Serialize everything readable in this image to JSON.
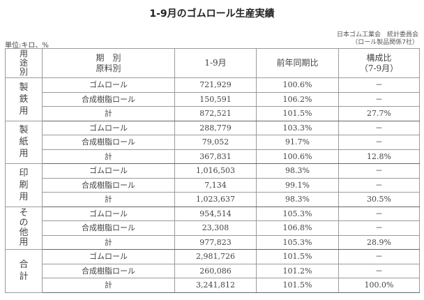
{
  "title": "1-9月のゴムロール生産実績",
  "organization": {
    "line1": "日本ゴム工業会　統計委員会",
    "line2": "（ロール製品関係7社）"
  },
  "unit": "単位:キロ、%",
  "table": {
    "headers": {
      "category": [
        "用",
        "途",
        "別"
      ],
      "type_line1": "期　別",
      "type_line2": "原料別",
      "period": "1-9月",
      "yoy": "前年同期比",
      "share_line1": "構成比",
      "share_line2": "（7-9月）"
    },
    "groups": [
      {
        "label": [
          "製",
          "鉄",
          "用"
        ],
        "rows": [
          {
            "type": "ゴムロール",
            "value": "721,929",
            "yoy": "100.6%",
            "share": "－"
          },
          {
            "type": "合成樹脂ロール",
            "value": "150,591",
            "yoy": "106.2%",
            "share": "－"
          },
          {
            "type": "計",
            "value": "872,521",
            "yoy": "101.5%",
            "share": "27.7%"
          }
        ]
      },
      {
        "label": [
          "製",
          "紙",
          "用"
        ],
        "rows": [
          {
            "type": "ゴムロール",
            "value": "288,779",
            "yoy": "103.3%",
            "share": "－"
          },
          {
            "type": "合成樹脂ロール",
            "value": "79,052",
            "yoy": "91.7%",
            "share": "－"
          },
          {
            "type": "計",
            "value": "367,831",
            "yoy": "100.6%",
            "share": "12.8%"
          }
        ]
      },
      {
        "label": [
          "印",
          "刷",
          "用"
        ],
        "rows": [
          {
            "type": "ゴムロール",
            "value": "1,016,503",
            "yoy": "98.3%",
            "share": "－"
          },
          {
            "type": "合成樹脂ロール",
            "value": "7,134",
            "yoy": "99.1%",
            "share": "－"
          },
          {
            "type": "計",
            "value": "1,023,637",
            "yoy": "98.3%",
            "share": "30.5%"
          }
        ]
      },
      {
        "label": [
          "そ",
          "の",
          "他",
          "用"
        ],
        "rows": [
          {
            "type": "ゴムロール",
            "value": "954,514",
            "yoy": "105.3%",
            "share": "－"
          },
          {
            "type": "合成樹脂ロール",
            "value": "23,308",
            "yoy": "106.8%",
            "share": "－"
          },
          {
            "type": "計",
            "value": "977,823",
            "yoy": "105.3%",
            "share": "28.9%"
          }
        ]
      },
      {
        "label": [
          "合",
          "計"
        ],
        "rows": [
          {
            "type": "ゴムロール",
            "value": "2,981,726",
            "yoy": "101.5%",
            "share": "－"
          },
          {
            "type": "合成樹脂ロール",
            "value": "260,086",
            "yoy": "101.2%",
            "share": "－"
          },
          {
            "type": "計",
            "value": "3,241,812",
            "yoy": "101.5%",
            "share": "100.0%"
          }
        ]
      }
    ]
  }
}
